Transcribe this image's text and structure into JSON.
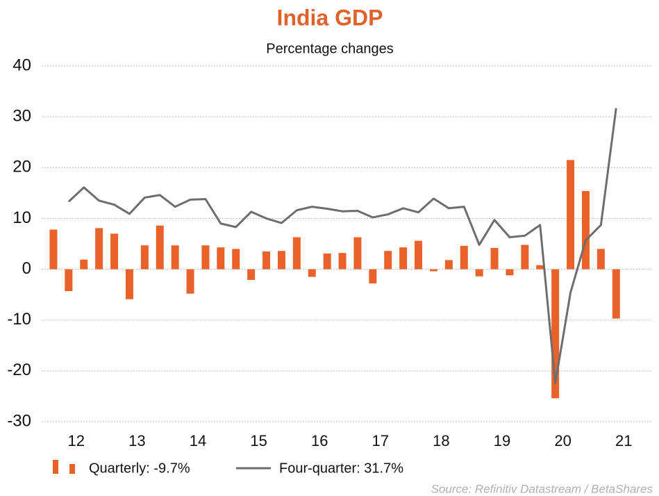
{
  "chart_data": {
    "type": "bar-line",
    "title": "India GDP",
    "subtitle": "Percentage changes",
    "categories": [
      "12",
      null,
      null,
      null,
      "13",
      null,
      null,
      null,
      "14",
      null,
      null,
      null,
      "15",
      null,
      null,
      null,
      "16",
      null,
      null,
      null,
      "17",
      null,
      null,
      null,
      "18",
      null,
      null,
      null,
      "19",
      null,
      null,
      null,
      "20",
      null,
      null,
      null,
      "21",
      null
    ],
    "series": [
      {
        "name": "Quarterly: -9.7%",
        "type": "bar",
        "color": "#e8622a",
        "values": [
          7.8,
          -4.3,
          1.9,
          8.1,
          7.0,
          -5.9,
          4.7,
          8.6,
          4.7,
          -4.8,
          4.7,
          4.3,
          4.0,
          -2.1,
          3.5,
          3.6,
          6.3,
          -1.5,
          3.1,
          3.2,
          6.3,
          -2.8,
          3.6,
          4.3,
          5.6,
          -0.4,
          1.8,
          4.6,
          -1.4,
          4.2,
          -1.2,
          4.8,
          0.8,
          -25.4,
          21.5,
          15.4,
          4.0,
          -9.7
        ]
      },
      {
        "name": "Four-quarter: 31.7%",
        "type": "line",
        "color": "#6d6d6d",
        "values": [
          null,
          13.3,
          16.1,
          13.5,
          12.7,
          10.9,
          14.1,
          14.6,
          12.3,
          13.7,
          13.8,
          9.0,
          8.3,
          11.3,
          10.0,
          9.1,
          11.6,
          12.3,
          11.9,
          11.4,
          11.5,
          10.2,
          10.8,
          12.0,
          11.2,
          13.9,
          12.0,
          12.3,
          4.8,
          9.7,
          6.3,
          6.6,
          8.7,
          -22.4,
          -4.6,
          5.7,
          8.7,
          31.7
        ]
      }
    ],
    "ylim": [
      -30,
      40
    ],
    "yticks": [
      -30,
      -20,
      -10,
      0,
      10,
      20,
      30,
      40
    ],
    "grid": true,
    "source": "Source: Refinitiv Datastream / BetaShares"
  }
}
